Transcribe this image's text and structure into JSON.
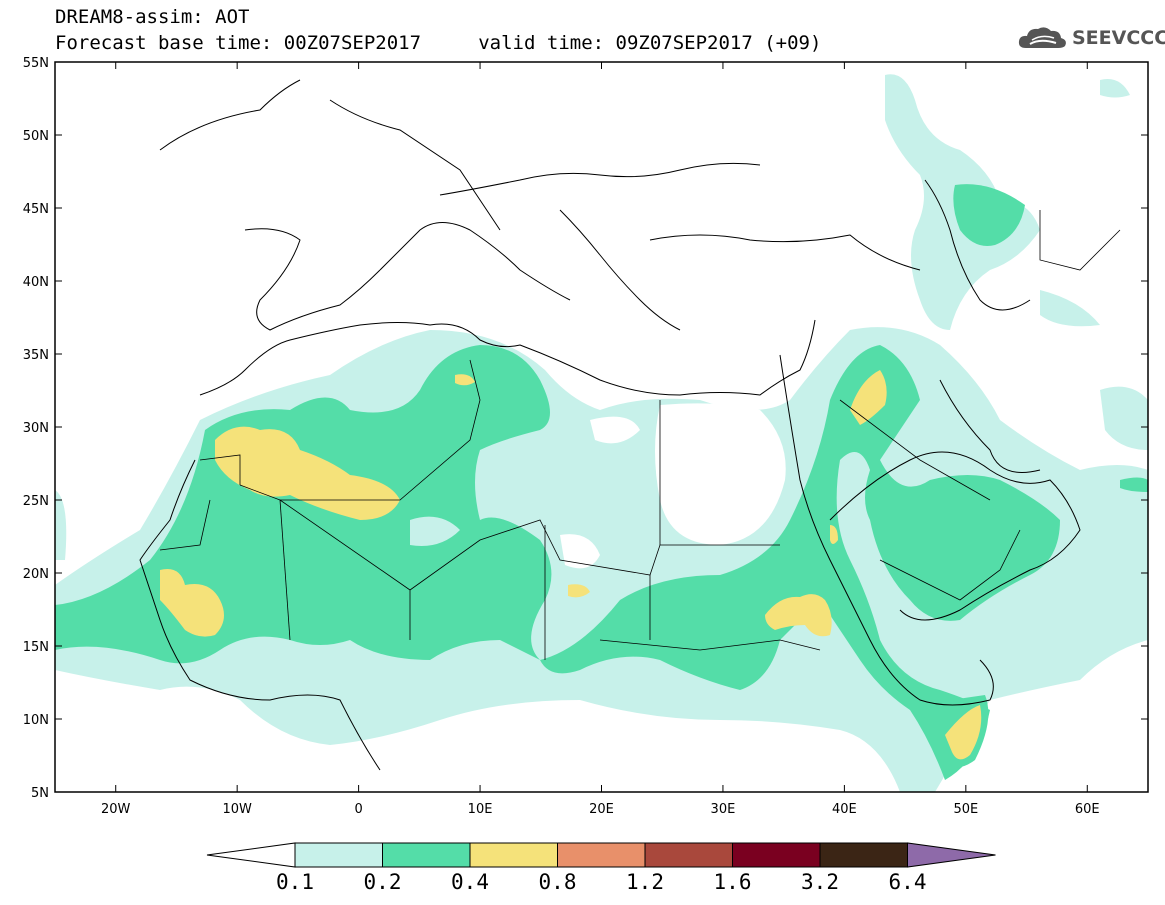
{
  "title": {
    "line1": "DREAM8-assim: AOT",
    "line2": "Forecast base time: 00Z07SEP2017     valid time: 09Z07SEP2017 (+09)"
  },
  "logo": {
    "text": "SEEVCCC",
    "icon": "cloud-logo-icon"
  },
  "map": {
    "lon_range": [
      -25,
      65
    ],
    "lat_range": [
      5,
      55
    ],
    "lat_ticks": [
      "55N",
      "50N",
      "45N",
      "40N",
      "35N",
      "30N",
      "25N",
      "20N",
      "15N",
      "10N",
      "5N"
    ],
    "lon_ticks": [
      "20W",
      "10W",
      "0",
      "10E",
      "20E",
      "30E",
      "40E",
      "50E",
      "60E"
    ]
  },
  "colorbar": {
    "levels": [
      "0.1",
      "0.2",
      "0.4",
      "0.8",
      "1.2",
      "1.6",
      "3.2",
      "6.4"
    ],
    "colors": [
      "#ffffff",
      "#c7f1ea",
      "#54dda8",
      "#f5e27a",
      "#e8906a",
      "#a9483c",
      "#7a0020",
      "#3b2515",
      "#8e6aa9"
    ]
  }
}
